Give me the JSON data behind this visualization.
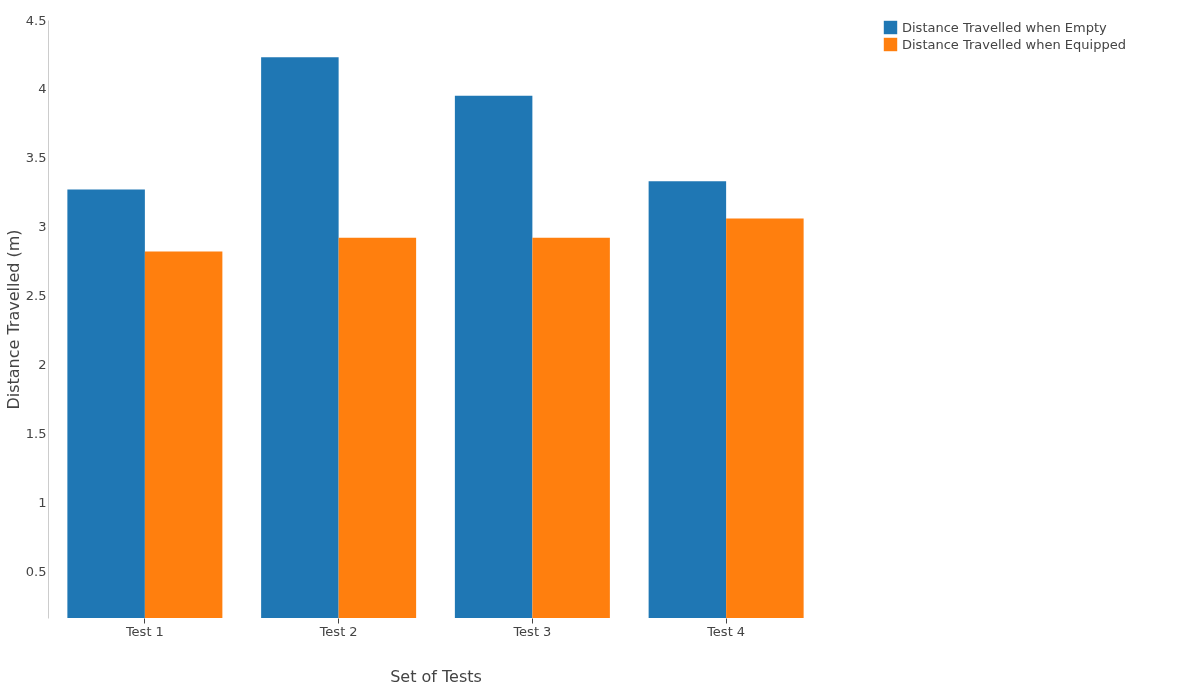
{
  "chart_data": {
    "type": "bar",
    "xlabel": "Set of Tests",
    "ylabel": "Distance Travelled (m)",
    "categories": [
      "Test 1",
      "Test 2",
      "Test 3",
      "Test 4"
    ],
    "series": [
      {
        "name": "Distance Travelled when Empty",
        "color": "#1f77b4",
        "values": [
          3.27,
          4.23,
          3.95,
          3.33
        ]
      },
      {
        "name": "Distance Travelled when Equipped",
        "color": "#ff7f0e",
        "values": [
          2.82,
          2.92,
          2.92,
          3.06
        ]
      }
    ],
    "ylim": [
      0.16,
      4.5
    ],
    "yticks": [
      0.5,
      1,
      1.5,
      2,
      2.5,
      3,
      3.5,
      4,
      4.5
    ],
    "grid": false,
    "legend": "top right"
  }
}
